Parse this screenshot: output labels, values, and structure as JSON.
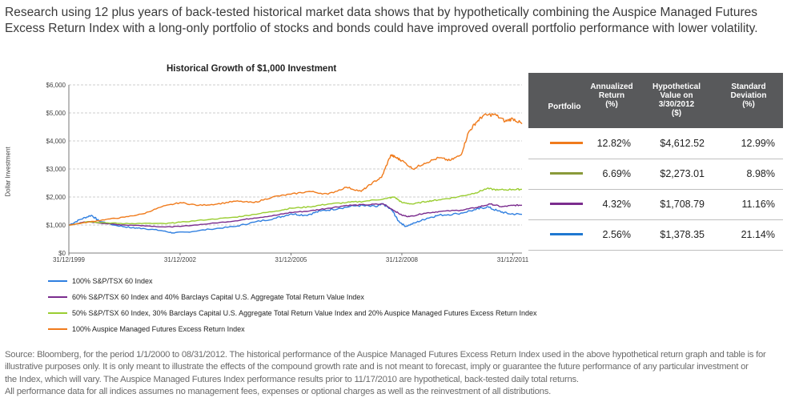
{
  "intro_text": "Research using 12 plus years of back-tested historical market data shows that by hypothetically combining the Auspice Managed Futures Excess Return Index with a long-only portfolio of stocks and bonds could have improved overall portfolio performance with lower volatility.",
  "table": {
    "headers": {
      "portfolio": "Portfolio",
      "return": [
        "Annualized",
        "Return",
        "(%)"
      ],
      "value": [
        "Hypothetical",
        "Value on",
        "3/30/2012",
        "($)"
      ],
      "sd": [
        "Standard",
        "Deviation",
        "(%)"
      ]
    },
    "rows": [
      {
        "color": "#f07b1c",
        "return": "12.82%",
        "value": "$4,612.52",
        "sd": "12.99%"
      },
      {
        "color": "#8a9a3a",
        "return": "6.69%",
        "value": "$2,273.01",
        "sd": "8.98%"
      },
      {
        "color": "#7b2d8e",
        "return": "4.32%",
        "value": "$1,708.79",
        "sd": "11.16%"
      },
      {
        "color": "#1f78d1",
        "return": "2.56%",
        "value": "$1,378.35",
        "sd": "21.14%"
      }
    ]
  },
  "legend": [
    {
      "label": "100% S&P/TSX 60 Index",
      "color": "#2f7fe0"
    },
    {
      "label": "60% S&P/TSX 60 Index and 40% Barclays Capital U.S. Aggregate Total Return Value Index",
      "color": "#7b2d8e"
    },
    {
      "label": "50% S&P/TSX 60 Index, 30% Barclays Capital U.S. Aggregate Total Return Value Index and 20% Auspice Managed Futures Excess Return Index",
      "color": "#9acd32"
    },
    {
      "label": "100% Auspice Managed Futures Excess Return Index",
      "color": "#f07b1c"
    }
  ],
  "source_lines": [
    "Source:  Bloomberg, for the period 1/1/2000 to 08/31/2012. The historical performance of the Auspice Managed Futures Excess Return Index used in the above hypothetical return graph and table is for",
    "illustrative purposes only. It is only meant to illustrate the effects of the compound growth rate and is not meant to forecast, imply or guarantee the future performance of any particular investment or",
    "the Index, which will vary. The Auspice Managed Futures Index performance results prior to 11/17/2010 are hypothetical, back-tested daily total returns.",
    "All performance data for all indices assumes no management fees, expenses or optional charges as well as the reinvestment of all distributions."
  ],
  "chart_data": {
    "type": "line",
    "title": "Historical Growth of $1,000 Investment",
    "xlabel": "",
    "ylabel": "Dollar Investment",
    "xlim": [
      1999.99,
      2012.25
    ],
    "ylim": [
      0,
      6000
    ],
    "yticks": [
      0,
      1000,
      2000,
      3000,
      4000,
      5000,
      6000
    ],
    "ytick_labels": [
      "$0",
      "$1,000",
      "$2,000",
      "$3,000",
      "$4,000",
      "$5,000",
      "$6,000"
    ],
    "xticks": [
      1999.99,
      2003.0,
      2006.0,
      2009.0,
      2012.0
    ],
    "xtick_labels": [
      "31/12/1999",
      "31/12/2002",
      "31/12/2005",
      "31/12/2008",
      "31/12/2011"
    ],
    "grid": "horizontal dashed",
    "series": [
      {
        "name": "100% S&P/TSX 60 Index",
        "color": "#2f7fe0",
        "x": [
          2000.0,
          2000.3,
          2000.6,
          2000.8,
          2001.2,
          2001.7,
          2002.0,
          2002.5,
          2002.8,
          2003.2,
          2003.8,
          2004.5,
          2005.0,
          2005.6,
          2006.0,
          2006.4,
          2006.8,
          2007.3,
          2007.8,
          2008.3,
          2008.5,
          2008.75,
          2008.9,
          2009.1,
          2009.4,
          2009.7,
          2010.0,
          2010.5,
          2011.0,
          2011.3,
          2011.6,
          2011.9,
          2012.25
        ],
        "y": [
          1000,
          1200,
          1350,
          1150,
          1000,
          900,
          880,
          800,
          720,
          750,
          850,
          950,
          1100,
          1250,
          1400,
          1350,
          1500,
          1600,
          1700,
          1650,
          1750,
          1500,
          1150,
          950,
          1100,
          1250,
          1350,
          1400,
          1550,
          1650,
          1500,
          1400,
          1380
        ]
      },
      {
        "name": "60% S&P/TSX 60 Index and 40% Barclays Capital U.S. Aggregate Total Return Value Index",
        "color": "#7b2d8e",
        "x": [
          2000.0,
          2000.5,
          2001.0,
          2001.5,
          2002.0,
          2002.6,
          2003.0,
          2003.8,
          2004.5,
          2005.0,
          2005.6,
          2006.0,
          2006.5,
          2007.0,
          2007.5,
          2008.0,
          2008.5,
          2008.75,
          2009.0,
          2009.2,
          2009.6,
          2010.0,
          2010.6,
          2011.0,
          2011.4,
          2011.7,
          2012.0,
          2012.25
        ],
        "y": [
          1000,
          1120,
          1050,
          1000,
          980,
          930,
          950,
          1050,
          1150,
          1250,
          1350,
          1450,
          1500,
          1600,
          1700,
          1720,
          1750,
          1550,
          1350,
          1300,
          1420,
          1480,
          1530,
          1620,
          1750,
          1650,
          1700,
          1710
        ]
      },
      {
        "name": "50% S&P/TSX 60 Index, 30% Barclays Capital U.S. Aggregate Total Return Value Index and 20% Auspice Managed Futures Excess Return Index",
        "color": "#9acd32",
        "x": [
          2000.0,
          2000.5,
          2001.0,
          2001.5,
          2002.0,
          2002.6,
          2003.0,
          2003.8,
          2004.5,
          2005.0,
          2005.6,
          2006.0,
          2006.5,
          2007.0,
          2007.5,
          2008.0,
          2008.6,
          2008.8,
          2009.0,
          2009.3,
          2009.7,
          2010.0,
          2010.5,
          2011.0,
          2011.3,
          2011.6,
          2012.0,
          2012.25
        ],
        "y": [
          1000,
          1120,
          1080,
          1050,
          1060,
          1050,
          1100,
          1200,
          1280,
          1380,
          1500,
          1600,
          1650,
          1750,
          1800,
          1850,
          1950,
          2000,
          1800,
          1750,
          1850,
          1900,
          2000,
          2150,
          2300,
          2250,
          2270,
          2273
        ]
      },
      {
        "name": "100% Auspice Managed Futures Excess Return Index",
        "color": "#f07b1c",
        "x": [
          2000.0,
          2000.5,
          2001.0,
          2001.5,
          2002.0,
          2002.5,
          2003.0,
          2003.5,
          2004.0,
          2004.5,
          2005.0,
          2005.5,
          2006.0,
          2006.5,
          2007.0,
          2007.5,
          2007.9,
          2008.2,
          2008.45,
          2008.7,
          2008.85,
          2009.0,
          2009.3,
          2009.6,
          2010.0,
          2010.3,
          2010.6,
          2010.8,
          2011.0,
          2011.2,
          2011.5,
          2011.8,
          2012.0,
          2012.25
        ],
        "y": [
          1000,
          1100,
          1200,
          1280,
          1400,
          1650,
          1800,
          1700,
          1750,
          1850,
          1800,
          2000,
          2100,
          2200,
          2100,
          2350,
          2200,
          2500,
          2700,
          3500,
          3400,
          3300,
          3000,
          3200,
          3400,
          3300,
          3500,
          4300,
          4650,
          4900,
          4950,
          4700,
          4800,
          4612
        ]
      }
    ]
  }
}
